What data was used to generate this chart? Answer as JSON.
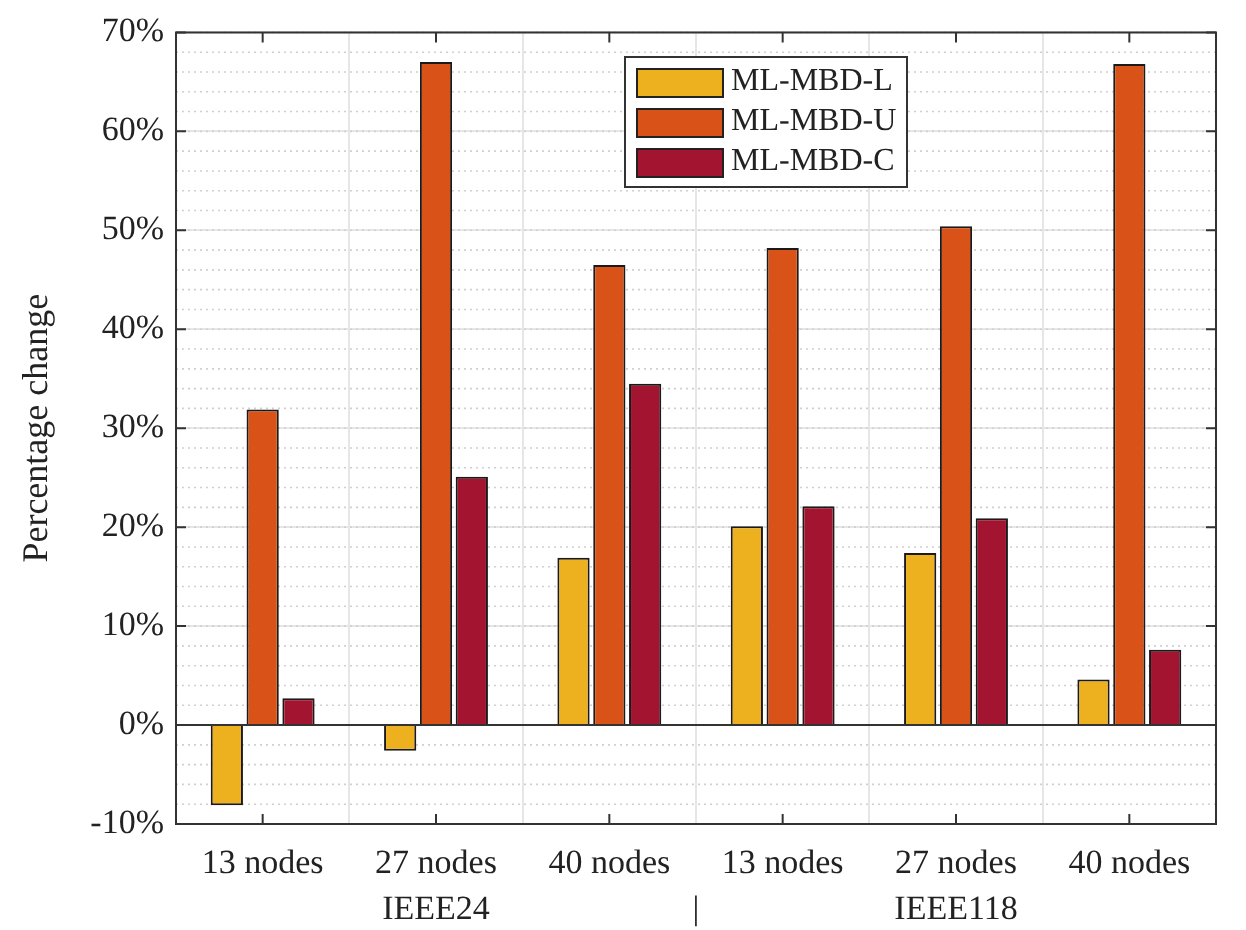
{
  "chart_data": {
    "type": "bar",
    "ylabel": "Percentage change",
    "categories": [
      "13 nodes",
      "27 nodes",
      "40 nodes",
      "13 nodes",
      "27 nodes",
      "40 nodes"
    ],
    "series": [
      {
        "name": "ML-MBD-L",
        "color": "#edb120",
        "values": [
          -8.1,
          -2.6,
          16.9,
          20.1,
          17.4,
          4.6
        ]
      },
      {
        "name": "ML-MBD-U",
        "color": "#d95319",
        "values": [
          31.9,
          67.0,
          46.5,
          48.2,
          50.4,
          66.8
        ]
      },
      {
        "name": "ML-MBD-C",
        "color": "#a2142f",
        "values": [
          2.7,
          25.1,
          34.5,
          22.1,
          20.9,
          7.6
        ]
      }
    ],
    "ylim": [
      -10,
      70
    ],
    "yticks": [
      {
        "value": -10,
        "label": "-10%"
      },
      {
        "value": 0,
        "label": "0%"
      },
      {
        "value": 10,
        "label": "10%"
      },
      {
        "value": 20,
        "label": "20%"
      },
      {
        "value": 30,
        "label": "30%"
      },
      {
        "value": 40,
        "label": "40%"
      },
      {
        "value": 50,
        "label": "50%"
      },
      {
        "value": 60,
        "label": "60%"
      },
      {
        "value": 70,
        "label": "70%"
      }
    ],
    "annotations": [
      "IEEE24",
      "|",
      "IEEE118"
    ],
    "grid": true,
    "legend": "top"
  }
}
